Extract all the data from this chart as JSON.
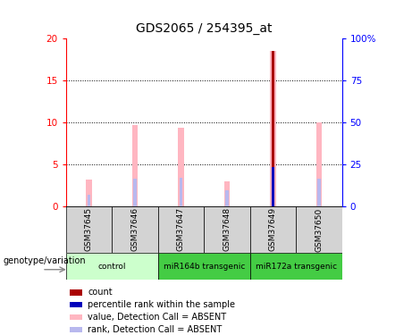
{
  "title": "GDS2065 / 254395_at",
  "samples": [
    "GSM37645",
    "GSM37646",
    "GSM37647",
    "GSM37648",
    "GSM37649",
    "GSM37650"
  ],
  "value_bars": [
    3.2,
    9.7,
    9.3,
    2.9,
    18.5,
    10.0
  ],
  "rank_bars": [
    1.3,
    3.3,
    3.4,
    1.9,
    4.7,
    3.3
  ],
  "count_bar_index": 4,
  "count_bar_value": 18.5,
  "percentile_bar_index": 4,
  "percentile_bar_value": 4.7,
  "ylim_left": [
    0,
    20
  ],
  "ylim_right": [
    0,
    100
  ],
  "yticks_left": [
    0,
    5,
    10,
    15,
    20
  ],
  "yticks_right": [
    0,
    25,
    50,
    75,
    100
  ],
  "yticklabels_right": [
    "0",
    "25",
    "50",
    "75",
    "100%"
  ],
  "value_bar_color": "#FFB6C1",
  "rank_bar_color": "#B8B8EE",
  "count_color": "#AA0000",
  "percentile_color": "#0000BB",
  "sample_box_color": "#D3D3D3",
  "group_defs": [
    {
      "label": "control",
      "start": 0,
      "end": 1,
      "color": "#CCFFCC"
    },
    {
      "label": "miR164b transgenic",
      "start": 2,
      "end": 3,
      "color": "#44CC44"
    },
    {
      "label": "miR172a transgenic",
      "start": 4,
      "end": 5,
      "color": "#44CC44"
    }
  ],
  "legend_items": [
    {
      "color": "#AA0000",
      "label": "count"
    },
    {
      "color": "#0000BB",
      "label": "percentile rank within the sample"
    },
    {
      "color": "#FFB6C1",
      "label": "value, Detection Call = ABSENT"
    },
    {
      "color": "#B8B8EE",
      "label": "rank, Detection Call = ABSENT"
    }
  ],
  "group_label_text": "genotype/variation"
}
